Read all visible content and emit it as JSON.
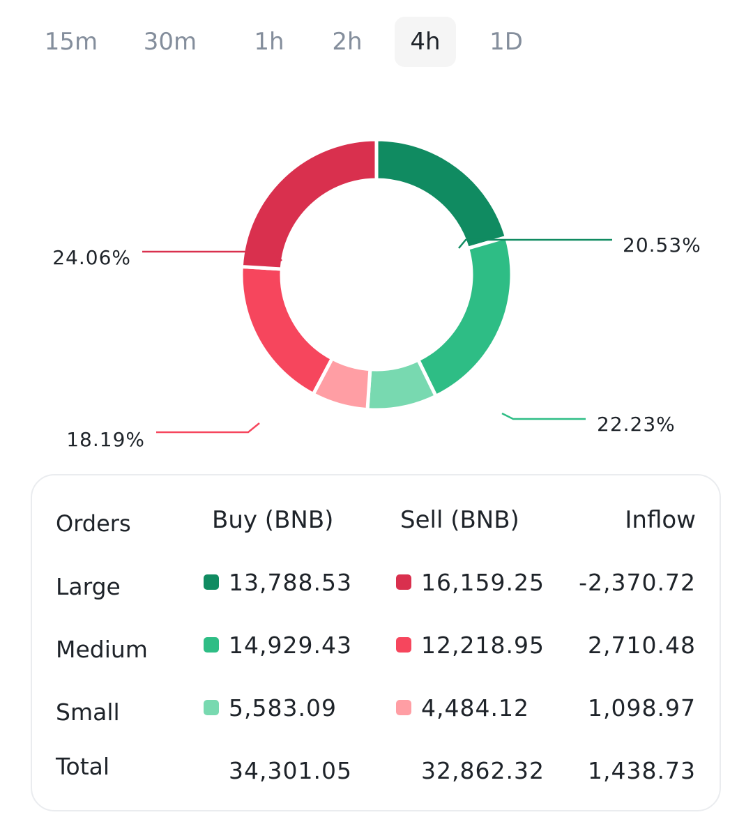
{
  "tabs": [
    {
      "label": "15m",
      "active": false
    },
    {
      "label": "30m",
      "active": false
    },
    {
      "label": "1h",
      "active": false
    },
    {
      "label": "2h",
      "active": false
    },
    {
      "label": "4h",
      "active": true
    },
    {
      "label": "1D",
      "active": false
    }
  ],
  "colors": {
    "large_buy": "#108b61",
    "medium_buy": "#2ebd85",
    "small_buy": "#78d9b0",
    "large_sell": "#d9304e",
    "medium_sell": "#f6465d",
    "small_sell": "#ff9ea4"
  },
  "chart_data": {
    "type": "pie",
    "donut": true,
    "slices": [
      {
        "label": "20.53%",
        "value": 20.53,
        "color": "#108b61"
      },
      {
        "label": "22.23%",
        "value": 22.23,
        "color": "#2ebd85"
      },
      {
        "label": "8.31%",
        "value": 8.31,
        "color": "#78d9b0"
      },
      {
        "label": "6.68%",
        "value": 6.68,
        "color": "#ff9ea4"
      },
      {
        "label": "18.19%",
        "value": 18.19,
        "color": "#f6465d"
      },
      {
        "label": "24.06%",
        "value": 24.06,
        "color": "#d9304e"
      }
    ]
  },
  "table": {
    "headers": {
      "orders": "Orders",
      "buy": "Buy (BNB)",
      "sell": "Sell (BNB)",
      "inflow": "Inflow"
    },
    "rows": [
      {
        "label": "Large",
        "buy": "13,788.53",
        "sell": "16,159.25",
        "inflow": "-2,370.72"
      },
      {
        "label": "Medium",
        "buy": "14,929.43",
        "sell": "12,218.95",
        "inflow": "2,710.48"
      },
      {
        "label": "Small",
        "buy": "5,583.09",
        "sell": "4,484.12",
        "inflow": "1,098.97"
      },
      {
        "label": "Total",
        "buy": "34,301.05",
        "sell": "32,862.32",
        "inflow": "1,438.73"
      }
    ]
  }
}
